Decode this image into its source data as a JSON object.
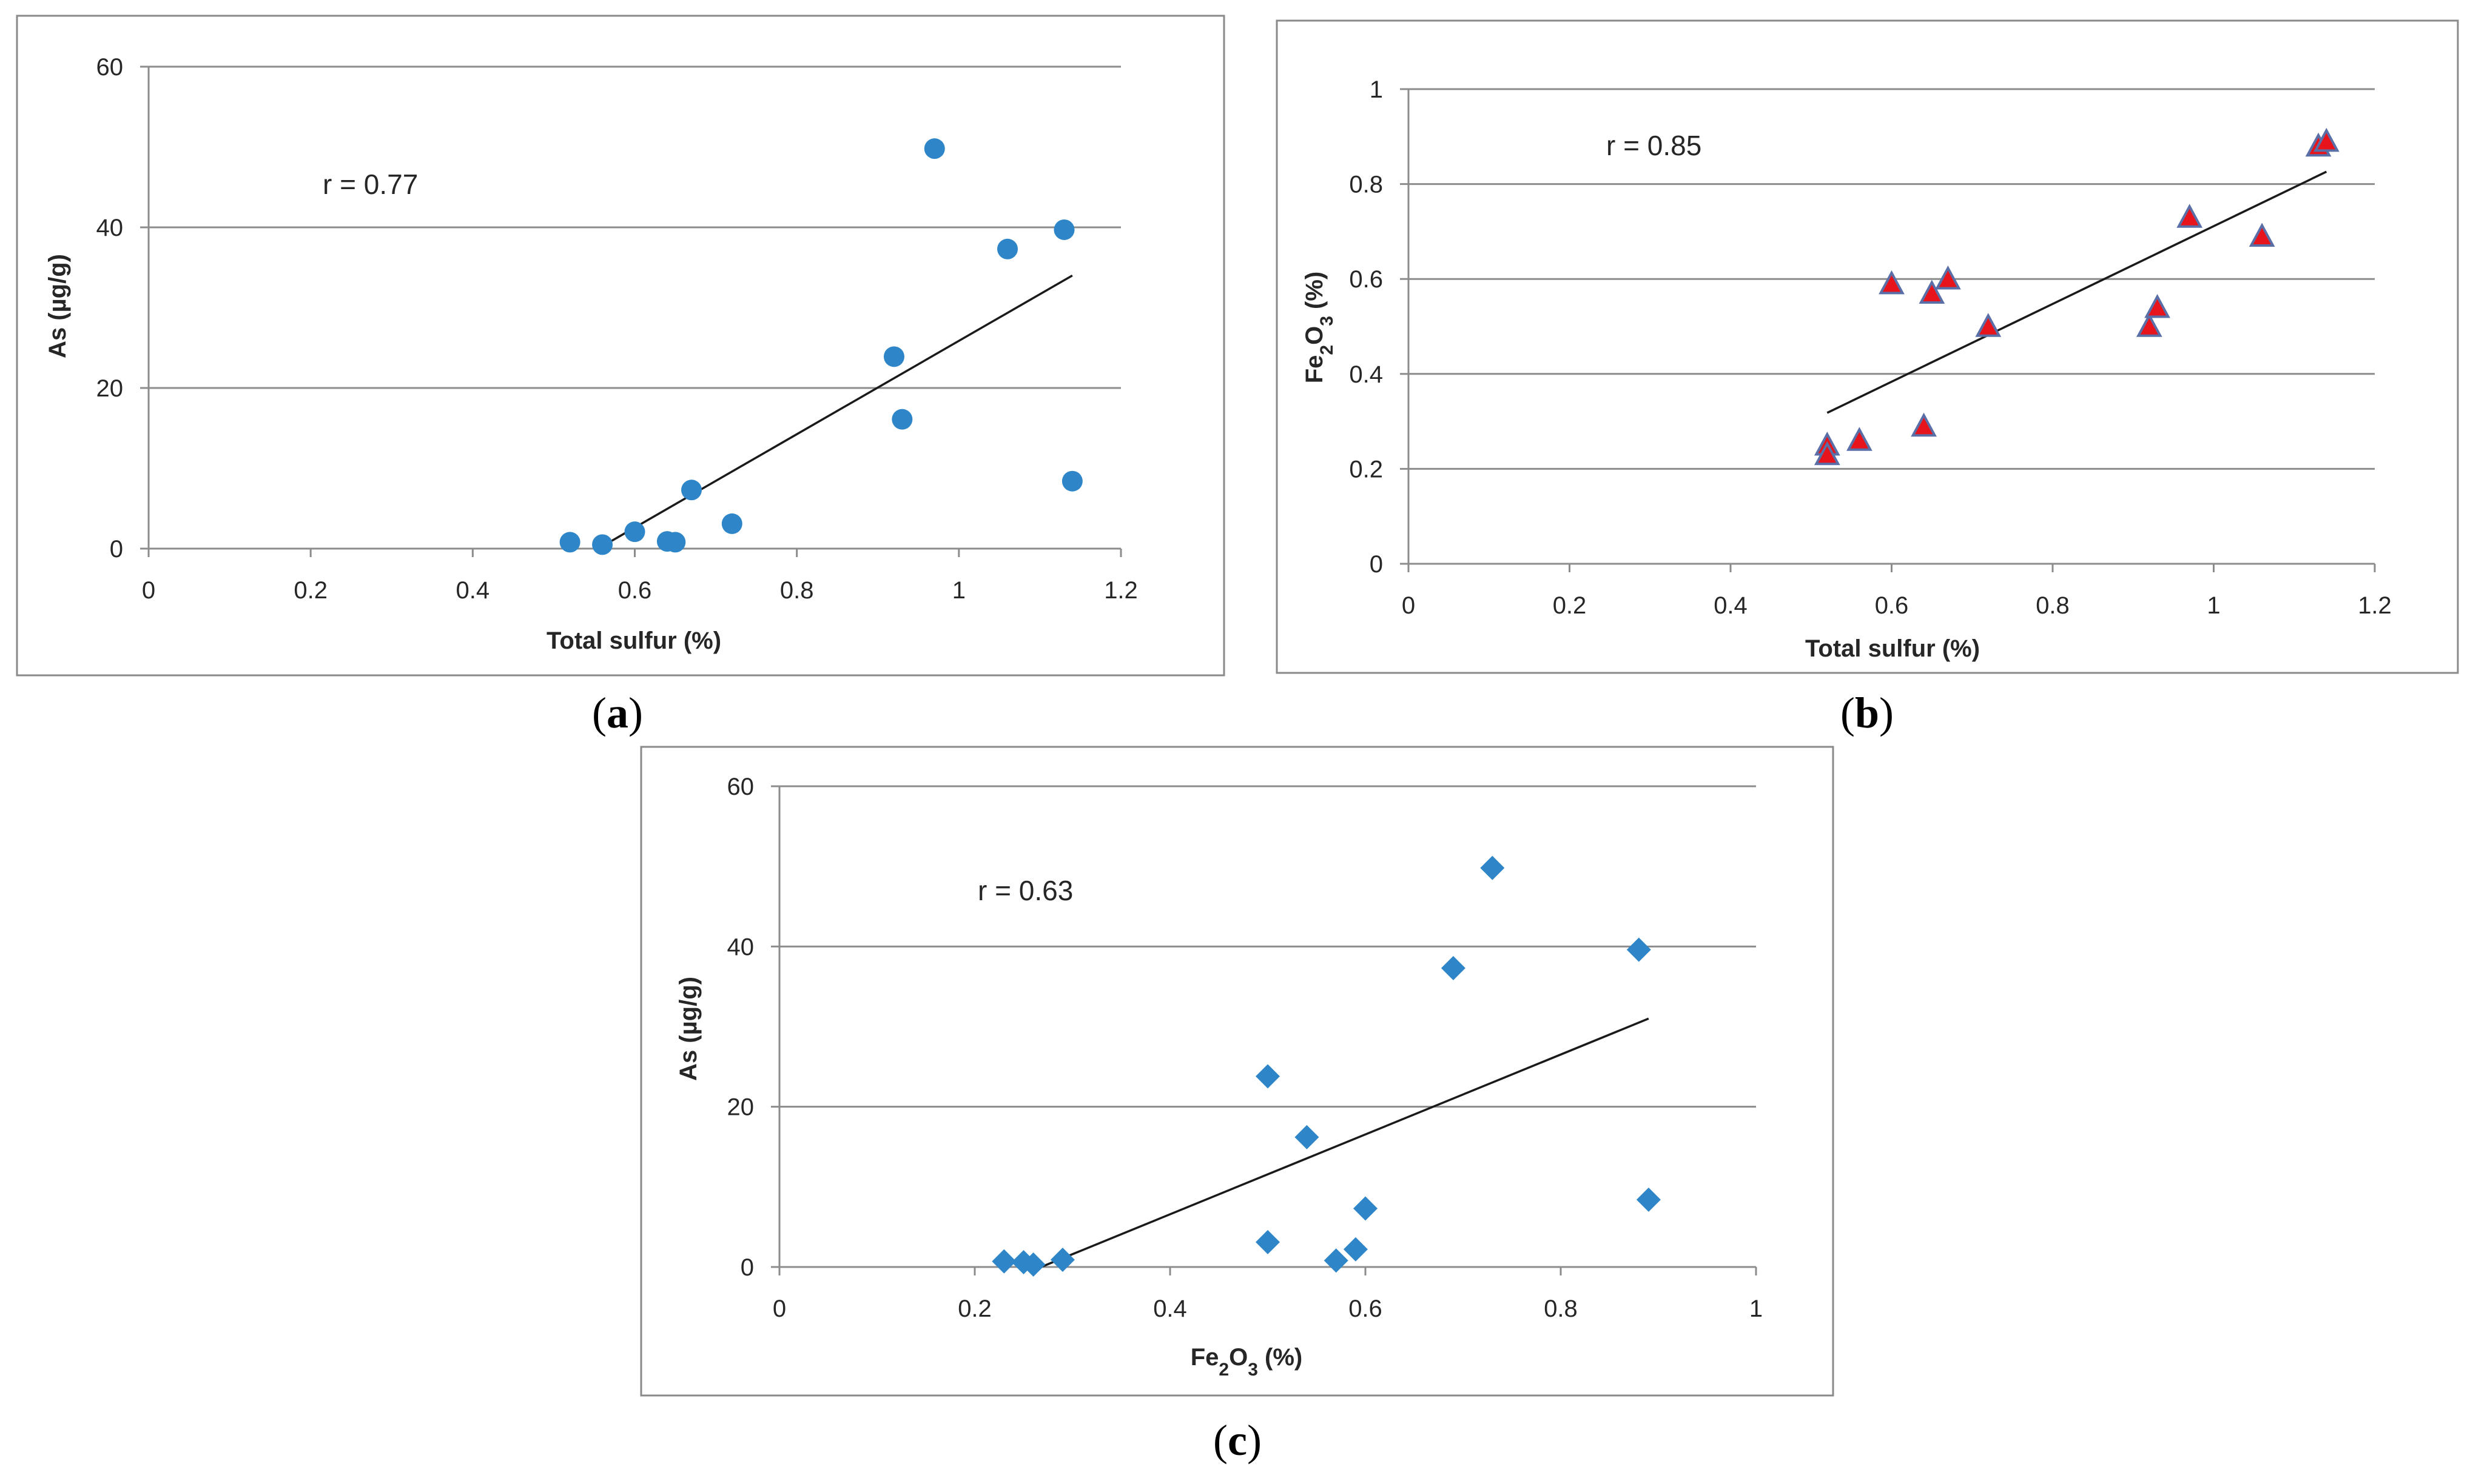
{
  "chart_data": [
    {
      "type": "scatter",
      "panel_label": "a",
      "xlabel": "Total sulfur (%)",
      "ylabel": "As (µg/g)",
      "xlim": [
        0,
        1.2
      ],
      "ylim": [
        0,
        60
      ],
      "xticks": [
        0,
        0.2,
        0.4,
        0.6,
        0.8,
        1,
        1.2
      ],
      "yticks": [
        0,
        20,
        40,
        60
      ],
      "annotation": "r = 0.77",
      "marker": "circle",
      "marker_color": "#2e86c8",
      "series": [
        {
          "name": "As vs Total sulfur",
          "points": [
            [
              0.52,
              0.8
            ],
            [
              0.56,
              0.5
            ],
            [
              0.6,
              2.1
            ],
            [
              0.64,
              0.9
            ],
            [
              0.65,
              0.8
            ],
            [
              0.67,
              7.3
            ],
            [
              0.72,
              3.1
            ],
            [
              0.92,
              23.9
            ],
            [
              0.93,
              16.1
            ],
            [
              0.97,
              49.8
            ],
            [
              1.06,
              37.3
            ],
            [
              1.13,
              39.7
            ],
            [
              1.14,
              8.4
            ]
          ]
        }
      ],
      "trendline": [
        [
          0.56,
          0.3
        ],
        [
          1.14,
          34
        ]
      ]
    },
    {
      "type": "scatter",
      "panel_label": "b",
      "xlabel": "Total sulfur (%)",
      "ylabel": "Fe2O3 (%)",
      "xlim": [
        0,
        1.2
      ],
      "ylim": [
        0,
        1
      ],
      "xticks": [
        0,
        0.2,
        0.4,
        0.6,
        0.8,
        1,
        1.2
      ],
      "yticks": [
        0,
        0.2,
        0.4,
        0.6,
        0.8,
        1
      ],
      "annotation": "r = 0.85",
      "marker": "triangle",
      "marker_color": "#e8141b",
      "marker_edge_color": "#5a6fa8",
      "series": [
        {
          "name": "Fe2O3 vs Total sulfur",
          "points": [
            [
              0.52,
              0.25
            ],
            [
              0.52,
              0.23
            ],
            [
              0.56,
              0.26
            ],
            [
              0.6,
              0.59
            ],
            [
              0.64,
              0.29
            ],
            [
              0.65,
              0.57
            ],
            [
              0.67,
              0.6
            ],
            [
              0.72,
              0.5
            ],
            [
              0.92,
              0.5
            ],
            [
              0.93,
              0.54
            ],
            [
              0.97,
              0.73
            ],
            [
              1.06,
              0.69
            ],
            [
              1.13,
              0.88
            ],
            [
              1.14,
              0.89
            ]
          ]
        }
      ],
      "trendline": [
        [
          0.52,
          0.318
        ],
        [
          1.14,
          0.826
        ]
      ]
    },
    {
      "type": "scatter",
      "panel_label": "c",
      "xlabel": "Fe2O3 (%)",
      "ylabel": "As (µg/g)",
      "xlim": [
        0,
        1
      ],
      "ylim": [
        0,
        60
      ],
      "xticks": [
        0,
        0.2,
        0.4,
        0.6,
        0.8,
        1
      ],
      "yticks": [
        0,
        20,
        40,
        60
      ],
      "annotation": "r = 0.63",
      "marker": "diamond",
      "marker_color": "#2e86c8",
      "series": [
        {
          "name": "As vs Fe2O3",
          "points": [
            [
              0.23,
              0.7
            ],
            [
              0.25,
              0.6
            ],
            [
              0.26,
              0.3
            ],
            [
              0.29,
              0.9
            ],
            [
              0.5,
              23.8
            ],
            [
              0.5,
              3.1
            ],
            [
              0.54,
              16.2
            ],
            [
              0.57,
              0.8
            ],
            [
              0.59,
              2.2
            ],
            [
              0.6,
              7.3
            ],
            [
              0.69,
              37.3
            ],
            [
              0.73,
              49.8
            ],
            [
              0.88,
              39.6
            ],
            [
              0.89,
              8.4
            ]
          ]
        }
      ],
      "trendline": [
        [
          0.26,
          -0.4
        ],
        [
          0.89,
          31
        ]
      ]
    }
  ]
}
